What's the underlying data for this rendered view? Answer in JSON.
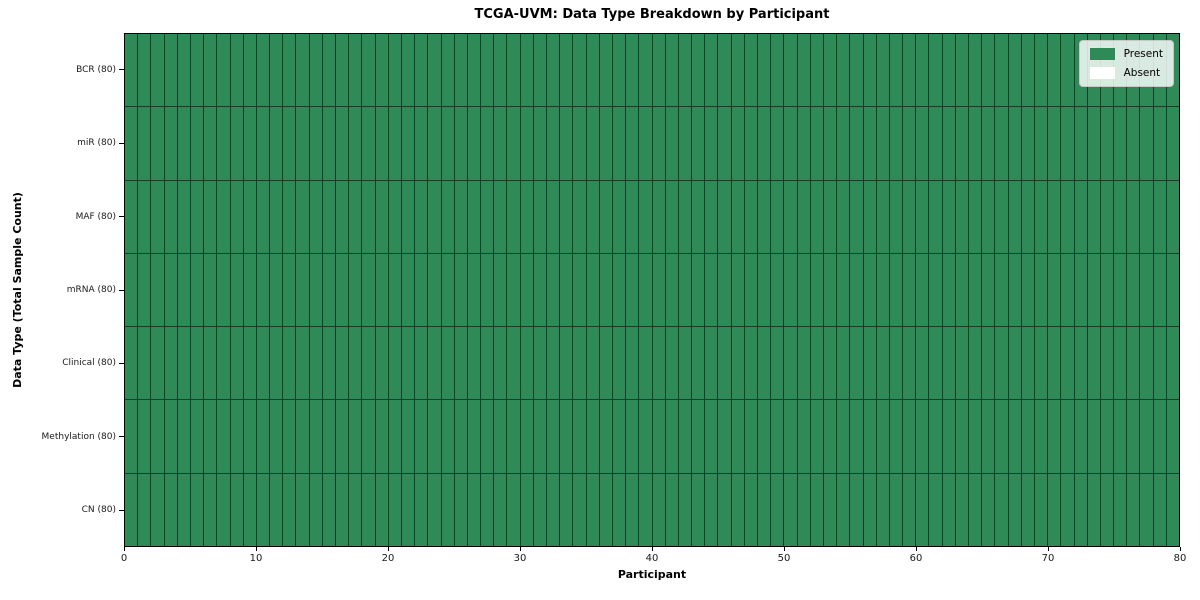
{
  "chart_data": {
    "type": "heatmap",
    "title": "TCGA-UVM: Data Type Breakdown by Participant",
    "xlabel": "Participant",
    "ylabel": "Data Type (Total Sample Count)",
    "xlim": [
      0,
      80
    ],
    "x_ticks": [
      0,
      10,
      20,
      30,
      40,
      50,
      60,
      70,
      80
    ],
    "n_participants": 80,
    "categories": [
      "BCR (80)",
      "miR (80)",
      "MAF (80)",
      "mRNA (80)",
      "Clinical (80)",
      "Methylation (80)",
      "CN (80)"
    ],
    "rows": [
      {
        "data_type": "BCR",
        "label": "BCR (80)",
        "total_samples": 80,
        "present_count": 80,
        "absent_count": 0
      },
      {
        "data_type": "miR",
        "label": "miR (80)",
        "total_samples": 80,
        "present_count": 80,
        "absent_count": 0
      },
      {
        "data_type": "MAF",
        "label": "MAF (80)",
        "total_samples": 80,
        "present_count": 80,
        "absent_count": 0
      },
      {
        "data_type": "mRNA",
        "label": "mRNA (80)",
        "total_samples": 80,
        "present_count": 80,
        "absent_count": 0
      },
      {
        "data_type": "Clinical",
        "label": "Clinical (80)",
        "total_samples": 80,
        "present_count": 80,
        "absent_count": 0
      },
      {
        "data_type": "Methylation",
        "label": "Methylation (80)",
        "total_samples": 80,
        "present_count": 80,
        "absent_count": 0
      },
      {
        "data_type": "CN",
        "label": "CN (80)",
        "total_samples": 80,
        "present_count": 80,
        "absent_count": 0
      }
    ],
    "value_encoding": "green cell = data type present for participant; white cell = absent; all 560 cells are present",
    "colors": {
      "present": "#2e8b57",
      "absent": "#ffffff",
      "cell_edge": "rgba(0,0,0,0.55)",
      "spine": "#000000"
    },
    "legend_position": "upper right",
    "grid": "per-cell borders",
    "legend": {
      "items": [
        {
          "label": "Present",
          "color": "#2e8b57"
        },
        {
          "label": "Absent",
          "color": "#ffffff"
        }
      ]
    }
  }
}
